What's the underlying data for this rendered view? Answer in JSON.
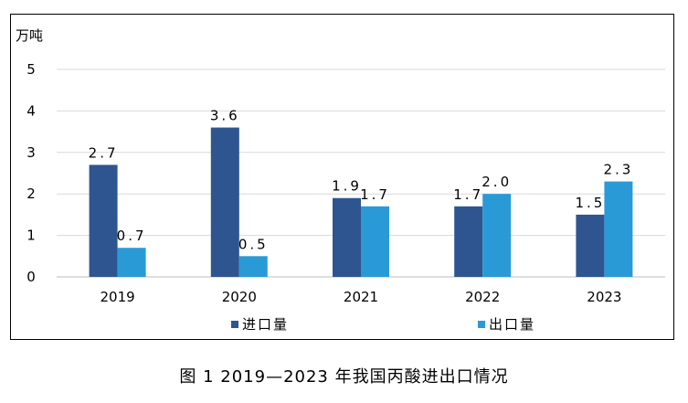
{
  "caption": "图 1 2019—2023 年我国丙酸进出口情况",
  "chart_data": {
    "type": "bar",
    "categories": [
      "2019",
      "2020",
      "2021",
      "2022",
      "2023"
    ],
    "series": [
      {
        "name": "进口量",
        "values": [
          2.7,
          3.6,
          1.9,
          1.7,
          1.5
        ],
        "labels": [
          "2.7",
          "3.6",
          "1.9",
          "1.7",
          "1.5"
        ],
        "color": "#2E5590"
      },
      {
        "name": "出口量",
        "values": [
          0.7,
          0.5,
          1.7,
          2.0,
          2.3
        ],
        "labels": [
          "0.7",
          "0.5",
          "1.7",
          "2.0",
          "2.3"
        ],
        "color": "#2A9AD6"
      }
    ],
    "ylabel": "万吨",
    "ylim": [
      0,
      5
    ],
    "yticks": [
      "0",
      "1",
      "2",
      "3",
      "4",
      "5"
    ],
    "grid": true,
    "legend_position": "bottom"
  }
}
